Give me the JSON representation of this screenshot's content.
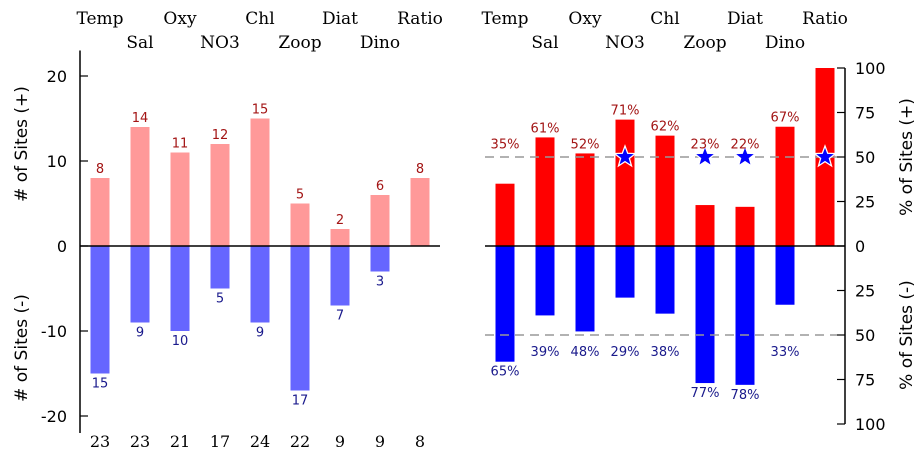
{
  "variables": [
    "Temp",
    "Sal",
    "Oxy",
    "NO3",
    "Chl",
    "Zoop",
    "Diat",
    "Dino",
    "Ratio"
  ],
  "chart_data": [
    {
      "type": "bar",
      "panel": "left",
      "categories": [
        "Temp",
        "Sal",
        "Oxy",
        "NO3",
        "Chl",
        "Zoop",
        "Diat",
        "Dino",
        "Ratio"
      ],
      "series": [
        {
          "values": [
            8,
            14,
            11,
            12,
            15,
            5,
            2,
            6,
            8
          ],
          "color": "#ff9999"
        },
        {
          "values": [
            -15,
            -9,
            -10,
            -5,
            -9,
            -17,
            -7,
            -3,
            null
          ],
          "color": "#6666ff"
        }
      ],
      "positive_labels": [
        "8",
        "14",
        "11",
        "12",
        "15",
        "5",
        "2",
        "6",
        "8"
      ],
      "negative_labels": [
        "15",
        "9",
        "10",
        "5",
        "9",
        "17",
        "7",
        "3",
        ""
      ],
      "totals": [
        "23",
        "23",
        "21",
        "17",
        "24",
        "22",
        "9",
        "9",
        "8"
      ],
      "ylabel_top": "# of Sites (+)",
      "ylabel_bottom": "# of Sites (-)",
      "ylim": [
        -22,
        23
      ],
      "yticks": [
        20,
        10,
        0,
        -10,
        -20
      ],
      "ytick_labels": [
        "20",
        "10",
        "0",
        "-10",
        "-20"
      ]
    },
    {
      "type": "bar",
      "panel": "right",
      "categories": [
        "Temp",
        "Sal",
        "Oxy",
        "NO3",
        "Chl",
        "Zoop",
        "Diat",
        "Dino",
        "Ratio"
      ],
      "series": [
        {
          "values": [
            35,
            61,
            52,
            71,
            62,
            23,
            22,
            67,
            100
          ],
          "color": "#ff0000"
        },
        {
          "values": [
            -65,
            -39,
            -48,
            -29,
            -38,
            -77,
            -78,
            -33,
            0
          ],
          "color": "#0000ff"
        }
      ],
      "positive_labels": [
        "35%",
        "61%",
        "52%",
        "71%",
        "62%",
        "23%",
        "22%",
        "67%",
        ""
      ],
      "negative_labels": [
        "65%",
        "39%",
        "48%",
        "29%",
        "38%",
        "77%",
        "78%",
        "33%",
        ""
      ],
      "stars_at": [
        "NO3",
        "Zoop",
        "Diat",
        "Ratio"
      ],
      "star_value": 50,
      "reference_lines": [
        50,
        -50
      ],
      "ylabel_top": "% of Sites (+)",
      "ylabel_bottom": "% of Sites (-)",
      "ylim": [
        -100,
        100
      ],
      "yticks": [
        100,
        75,
        50,
        25,
        0,
        -25,
        -50,
        -75,
        -100
      ],
      "ytick_labels": [
        "100",
        "75",
        "50",
        "25",
        "0",
        "25",
        "50",
        "75",
        "100"
      ]
    }
  ]
}
